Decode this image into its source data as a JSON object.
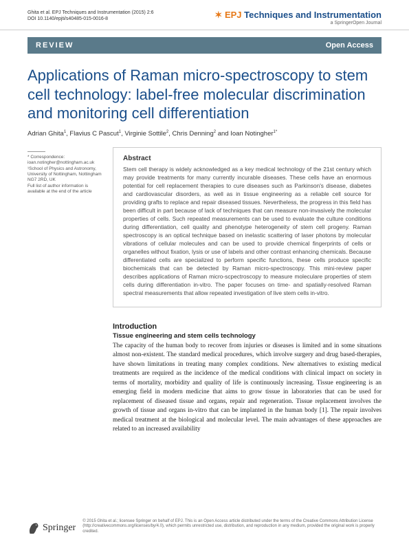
{
  "header": {
    "citation_line1": "Ghita et al. EPJ Techniques and Instrumentation  (2015) 2:6",
    "citation_line2": "DOI 10.1140/epjti/s40485-015-0016-8",
    "brand_epj": "EPJ",
    "brand_rest": "Techniques and Instrumentation",
    "brand_subtitle": "a SpringerOpen Journal"
  },
  "banner": {
    "review": "REVIEW",
    "open_access": "Open Access"
  },
  "title": "Applications of Raman micro-spectroscopy to stem cell technology: label-free molecular discrimination and monitoring cell differentiation",
  "authors_html": "Adrian Ghita<sup>1</sup>, Flavius C Pascut<sup>1</sup>, Virginie Sottile<sup>2</sup>, Chris Denning<sup>2</sup> and Ioan Notingher<sup>1*</sup>",
  "correspondence": {
    "label": "* Correspondence:",
    "email": "ioan.notingher@nottingham.ac.uk",
    "affil": "¹School of Physics and Astronomy, University of Nottingham, Nottingham NG7 2RD, UK",
    "note": "Full list of author information is available at the end of the article"
  },
  "abstract": {
    "heading": "Abstract",
    "text": "Stem cell therapy is widely acknowledged as a key medical technology of the 21st century which may provide treatments for many currently incurable diseases. These cells have an enormous potential for cell replacement therapies to cure diseases such as Parkinson's disease, diabetes and cardiovascular disorders, as well as in tissue engineering as a reliable cell source for providing grafts to replace and repair diseased tissues. Nevertheless, the progress in this field has been difficult in part because of lack of techniques that can measure non-invasively the molecular properties of cells. Such repeated measurements can be used to evaluate the culture conditions during differentiation, cell quality and phenotype heterogeneity of stem cell progeny. Raman spectroscopy is an optical technique based on inelastic scattering of laser photons by molecular vibrations of cellular molecules and can be used to provide chemical fingerprints of cells or organelles without fixation, lysis or use of labels and other contrast enhancing chemicals. Because differentiated cells are specialized to perform specific functions, these cells produce specific biochemicals that can be detected by Raman micro-spectroscopy. This mini-review paper describes applications of Raman micro-scpectroscopy to measure moleculare properties of stem cells during differentiation in-vitro. The paper focuses on time- and spatially-resolved Raman spectral measurements that allow repeated investigation of live stem cells in-vitro."
  },
  "intro": {
    "heading": "Introduction",
    "subheading": "Tissue engineering and stem cells technology",
    "body": "The capacity of the human body to recover from injuries or diseases is limited and in some situations almost non-existent. The standard medical procedures, which involve surgery and drug based-therapies, have shown limitations in treating many complex conditions. New alternatives to existing medical treatments are required as the incidence of the medical conditions with clinical impact on society in terms of mortality, morbidity and quality of life is continuously increasing. Tissue engineering is an emerging field in modern medicine that aims to grow tissue in laboratories that can be used for replacement of diseased tissue and organs, repair and regeneration. Tissue replacement involves the growth of tissue and organs in-vitro that can be implanted in the human body [1]. The repair involves medical treatment at the biological and molecular level. The main advantages of these approaches are related to an increased availability"
  },
  "footer": {
    "springer": "Springer",
    "license": "© 2015 Ghita et al.; licensee Springer on behalf of EPJ. This is an Open Access article distributed under the terms of the Creative Commons Attribution License (http://creativecommons.org/licenses/by/4.0), which permits unrestricted use, distribution, and reproduction in any medium, provided the original work is properly credited."
  }
}
